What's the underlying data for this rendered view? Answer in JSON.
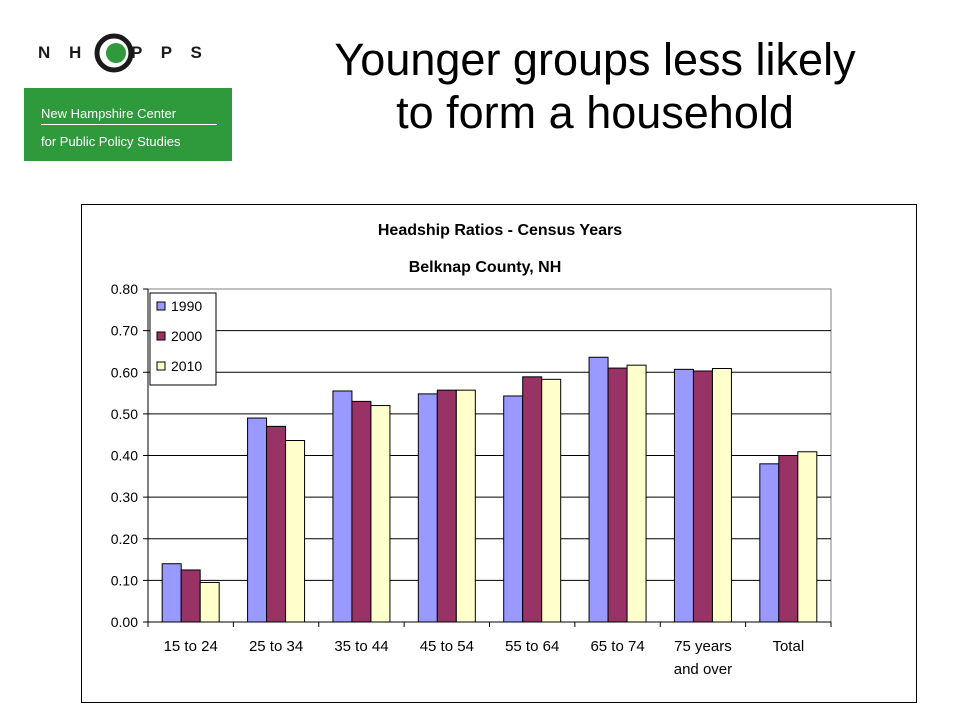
{
  "logo": {
    "letters": "N H C P P S",
    "line1": "New Hampshire Center",
    "line2": "for Public Policy Studies",
    "accent": "#2e9a3c"
  },
  "slide": {
    "title_line1": "Younger groups less likely",
    "title_line2": "to form a household"
  },
  "chart_data": {
    "type": "bar",
    "title": "Headship Ratios - Census Years",
    "subtitle": "Belknap County, NH",
    "categories": [
      "15 to 24",
      "25 to 34",
      "35 to 44",
      "45 to 54",
      "55 to 64",
      "65 to 74",
      "75 years and over",
      "Total"
    ],
    "category_label_lines": [
      [
        "15 to 24"
      ],
      [
        "25 to 34"
      ],
      [
        "35 to 44"
      ],
      [
        "45 to 54"
      ],
      [
        "55 to 64"
      ],
      [
        "65 to 74"
      ],
      [
        "75 years",
        "and over"
      ],
      [
        "Total"
      ]
    ],
    "series": [
      {
        "name": "1990",
        "color": "#9999ff",
        "values": [
          0.14,
          0.49,
          0.555,
          0.548,
          0.543,
          0.636,
          0.607,
          0.38
        ]
      },
      {
        "name": "2000",
        "color": "#993366",
        "values": [
          0.125,
          0.47,
          0.53,
          0.557,
          0.589,
          0.61,
          0.603,
          0.4
        ]
      },
      {
        "name": "2010",
        "color": "#ffffcc",
        "values": [
          0.095,
          0.436,
          0.52,
          0.557,
          0.583,
          0.617,
          0.609,
          0.409
        ]
      }
    ],
    "ylim": [
      0,
      0.8
    ],
    "yticks": [
      "0.00",
      "0.10",
      "0.20",
      "0.30",
      "0.40",
      "0.50",
      "0.60",
      "0.70",
      "0.80"
    ],
    "xlabel": "",
    "ylabel": "",
    "grid": true,
    "legend": "top-left"
  }
}
